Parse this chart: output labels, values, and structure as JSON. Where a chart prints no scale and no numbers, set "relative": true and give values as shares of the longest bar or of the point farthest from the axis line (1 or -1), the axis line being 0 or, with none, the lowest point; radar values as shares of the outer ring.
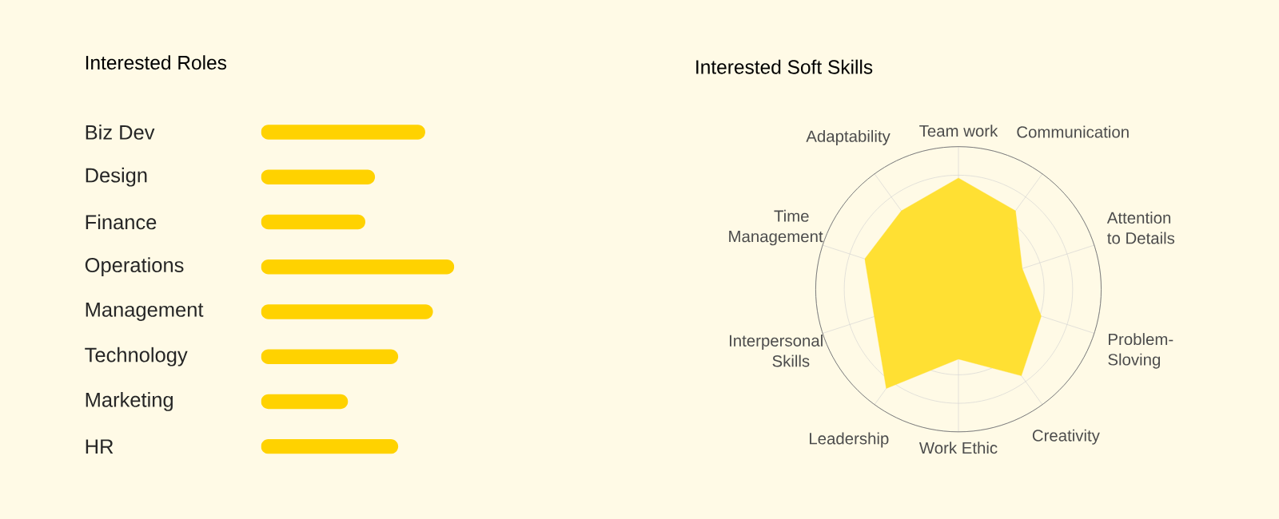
{
  "chart_data": [
    {
      "type": "bar",
      "title": "Interested Roles",
      "orientation": "horizontal",
      "relative": true,
      "categories": [
        "Biz Dev",
        "Design",
        "Finance",
        "Operations",
        "Management",
        "Technology",
        "Marketing",
        "HR"
      ],
      "values": [
        0.85,
        0.59,
        0.54,
        1,
        0.89,
        0.71,
        0.45,
        0.71
      ],
      "color": "#ffd200"
    },
    {
      "type": "radar",
      "title": "Interested Soft Skills",
      "relative": true,
      "grid": true,
      "categories": [
        "Team work",
        "Communication",
        "Attention to Details",
        "Problem-Sloving",
        "Creativity",
        "Work Ethic",
        "Leadership",
        "Interpersonal Skills",
        "Time Management",
        "Adaptability"
      ],
      "series": [
        {
          "color": "#ffe033",
          "values": [
            0.78,
            0.68,
            0.47,
            0.61,
            0.75,
            0.49,
            0.86,
            0.62,
            0.69,
            0.68
          ]
        }
      ]
    }
  ]
}
